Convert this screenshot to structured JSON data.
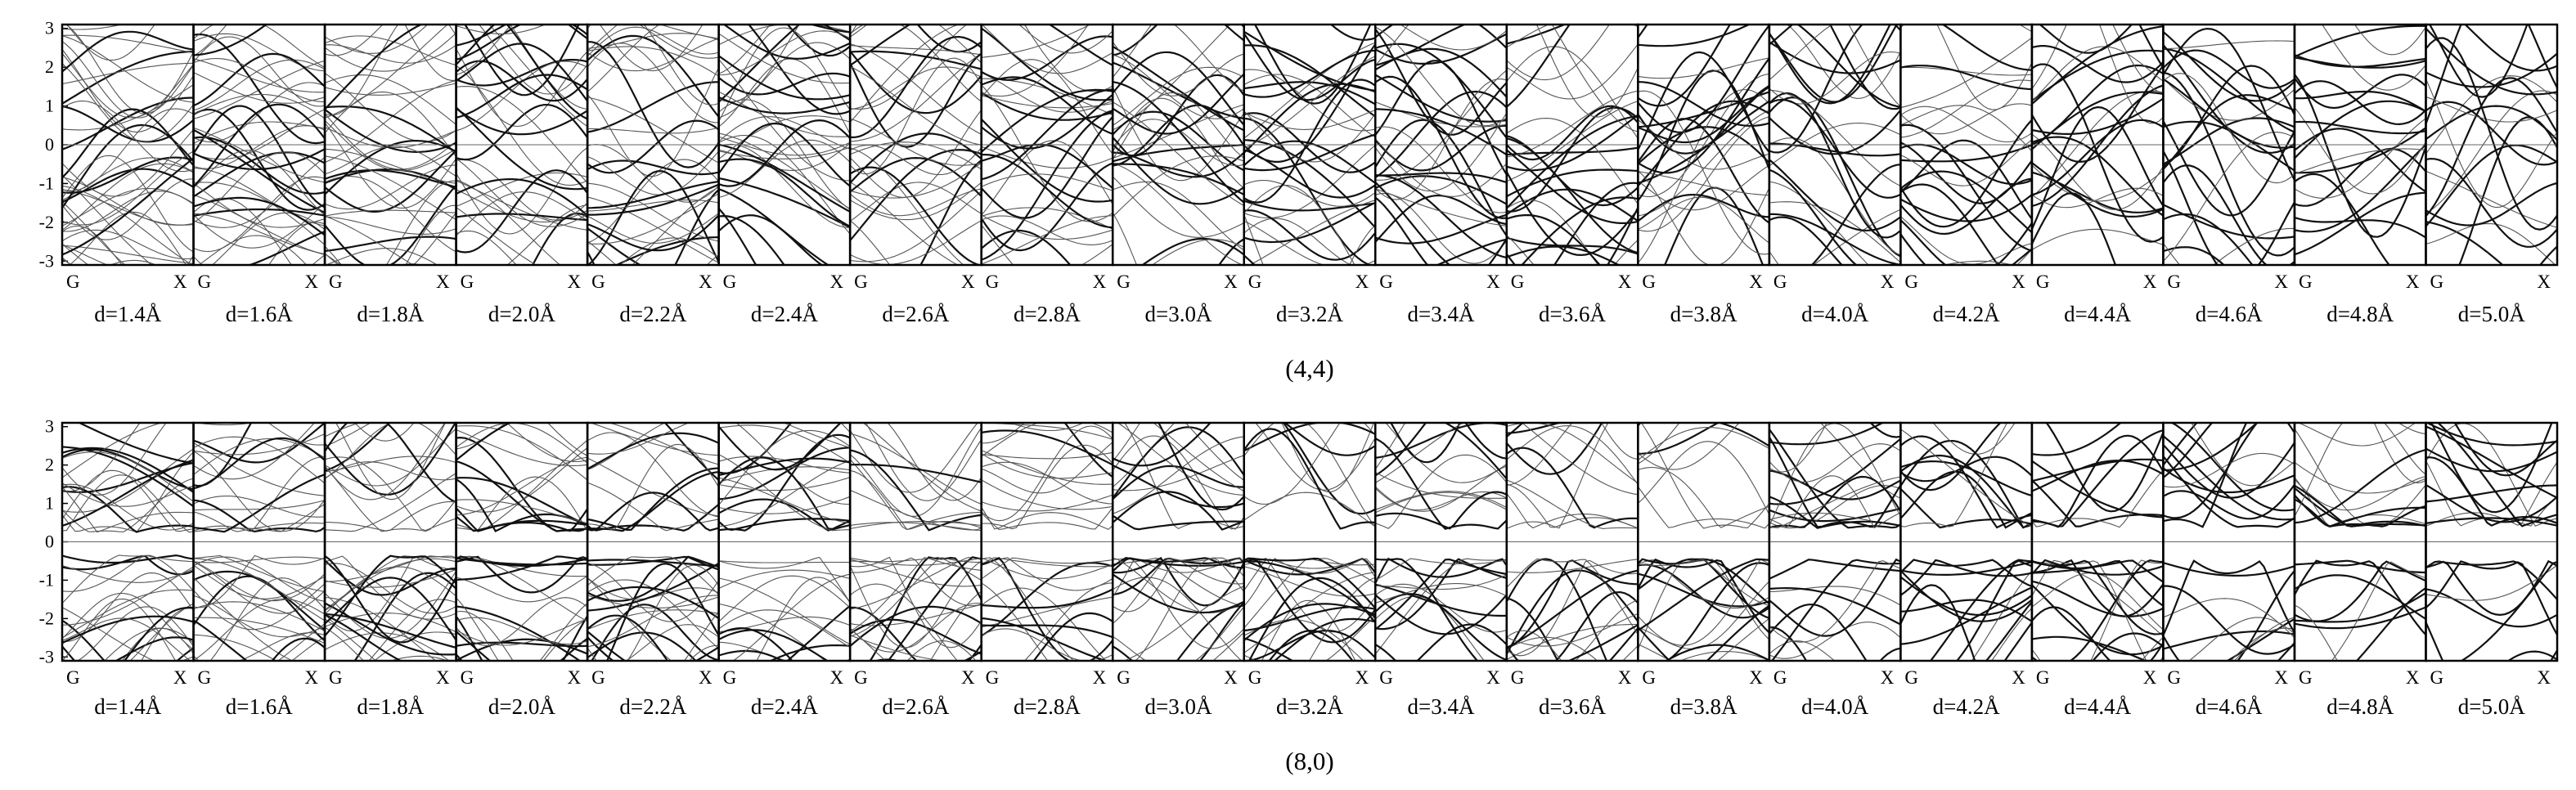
{
  "chart_data": [
    {
      "type": "line",
      "caption": "(4,4)",
      "y_ticks": [
        "3",
        "2",
        "1",
        "0",
        "-1",
        "-2",
        "-3"
      ],
      "ylim": [
        -3.1,
        3.1
      ],
      "k_points": [
        "G",
        "X"
      ],
      "panel_labels": [
        "d=1.4Å",
        "d=1.6Å",
        "d=1.8Å",
        "d=2.0Å",
        "d=2.2Å",
        "d=2.4Å",
        "d=2.6Å",
        "d=2.8Å",
        "d=3.0Å",
        "d=3.2Å",
        "d=3.4Å",
        "d=3.6Å",
        "d=3.8Å",
        "d=4.0Å",
        "d=4.2Å",
        "d=4.4Å",
        "d=4.6Å",
        "d=4.8Å",
        "d=5.0Å"
      ],
      "d_values": [
        1.4,
        1.6,
        1.8,
        2.0,
        2.2,
        2.4,
        2.6,
        2.8,
        3.0,
        3.2,
        3.4,
        3.6,
        3.8,
        4.0,
        4.2,
        4.4,
        4.6,
        4.8,
        5.0
      ],
      "fermi_level": 0,
      "metallic": true,
      "grid": false
    },
    {
      "type": "line",
      "caption": "(8,0)",
      "y_ticks": [
        "3",
        "2",
        "1",
        "0",
        "-1",
        "-2",
        "-3"
      ],
      "ylim": [
        -3.1,
        3.1
      ],
      "k_points": [
        "G",
        "X"
      ],
      "panel_labels": [
        "d=1.4Å",
        "d=1.6Å",
        "d=1.8Å",
        "d=2.0Å",
        "d=2.2Å",
        "d=2.4Å",
        "d=2.6Å",
        "d=2.8Å",
        "d=3.0Å",
        "d=3.2Å",
        "d=3.4Å",
        "d=3.6Å",
        "d=3.8Å",
        "d=4.0Å",
        "d=4.2Å",
        "d=4.4Å",
        "d=4.6Å",
        "d=4.8Å",
        "d=5.0Å"
      ],
      "d_values": [
        1.4,
        1.6,
        1.8,
        2.0,
        2.2,
        2.4,
        2.6,
        2.8,
        3.0,
        3.2,
        3.4,
        3.6,
        3.8,
        4.0,
        4.2,
        4.4,
        4.6,
        4.8,
        5.0
      ],
      "fermi_level": 0,
      "metallic": false,
      "grid": false
    }
  ]
}
